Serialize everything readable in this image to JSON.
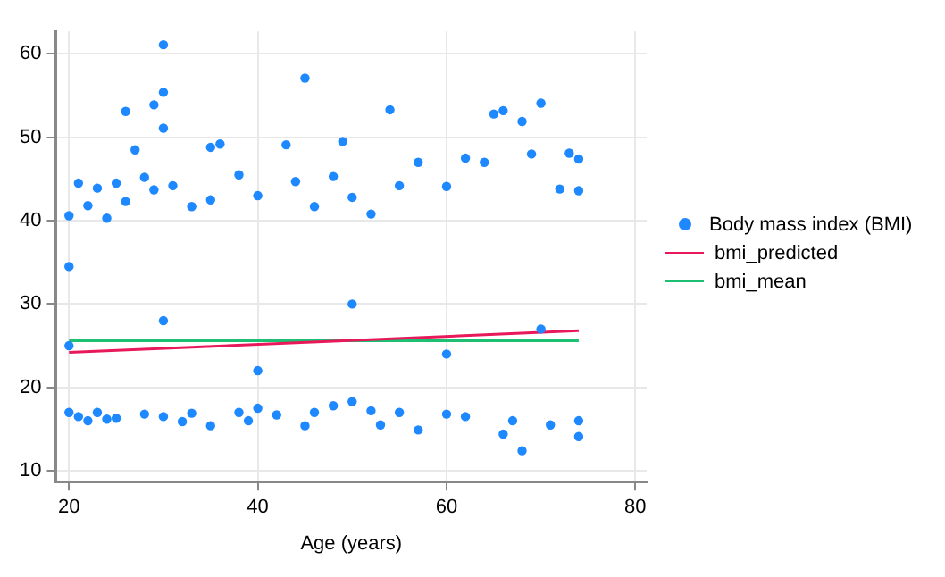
{
  "chart_data": {
    "type": "scatter",
    "xlabel": "Age (years)",
    "xlim": [
      18.6,
      81.2
    ],
    "ylim": [
      8.7,
      62.7
    ],
    "xticks": [
      20,
      40,
      60,
      80
    ],
    "yticks": [
      10,
      20,
      30,
      40,
      50,
      60
    ],
    "grid": true,
    "legend": "right",
    "series": [
      {
        "name": "Body mass index (BMI)",
        "type": "scatter",
        "marker": "circle",
        "color": "#1e88ff",
        "x": [
          30,
          30,
          29,
          26,
          30,
          45,
          54,
          65,
          66,
          70,
          68,
          27,
          35,
          36,
          43,
          49,
          73,
          74,
          20,
          21,
          68,
          66,
          74,
          57,
          35,
          45,
          39,
          32,
          20,
          20,
          21,
          22,
          22,
          23,
          23,
          24,
          24,
          25,
          25,
          26,
          28,
          28,
          29,
          30,
          31,
          33,
          33,
          35,
          38,
          38,
          40,
          40,
          42,
          44,
          46,
          46,
          48,
          48,
          50,
          50,
          52,
          52,
          53,
          55,
          55,
          57,
          60,
          60,
          62,
          62,
          64,
          67,
          69,
          71,
          72,
          74,
          74,
          20,
          30,
          40,
          50,
          60,
          70
        ],
        "values": [
          61.1,
          55.4,
          53.9,
          53.1,
          51.1,
          57.1,
          53.3,
          52.8,
          53.2,
          54.1,
          51.9,
          48.5,
          48.8,
          49.2,
          49.1,
          49.5,
          48.1,
          47.4,
          40.6,
          44.5,
          12.4,
          14.4,
          14.1,
          14.9,
          15.4,
          15.4,
          16.0,
          15.9,
          17.0,
          34.5,
          16.5,
          16.0,
          41.8,
          43.9,
          17.0,
          16.2,
          40.3,
          44.5,
          16.3,
          42.3,
          16.8,
          45.2,
          43.7,
          16.5,
          44.2,
          41.7,
          16.9,
          42.5,
          45.5,
          17.0,
          43.0,
          17.5,
          16.7,
          44.7,
          41.7,
          17.0,
          45.3,
          17.8,
          42.8,
          18.3,
          40.8,
          17.2,
          15.5,
          44.2,
          17.0,
          47.0,
          44.1,
          16.8,
          47.5,
          16.5,
          47.0,
          16.0,
          48.0,
          15.5,
          43.8,
          43.6,
          16.0,
          25,
          28,
          22,
          30,
          24,
          27
        ]
      },
      {
        "name": "bmi_predicted",
        "type": "line",
        "color": "#e8195a",
        "x": [
          20,
          74
        ],
        "values": [
          24.2,
          26.8
        ]
      },
      {
        "name": "bmi_mean",
        "type": "line",
        "color": "#1dbf73",
        "x": [
          20,
          74
        ],
        "values": [
          25.6,
          25.6
        ]
      }
    ]
  }
}
